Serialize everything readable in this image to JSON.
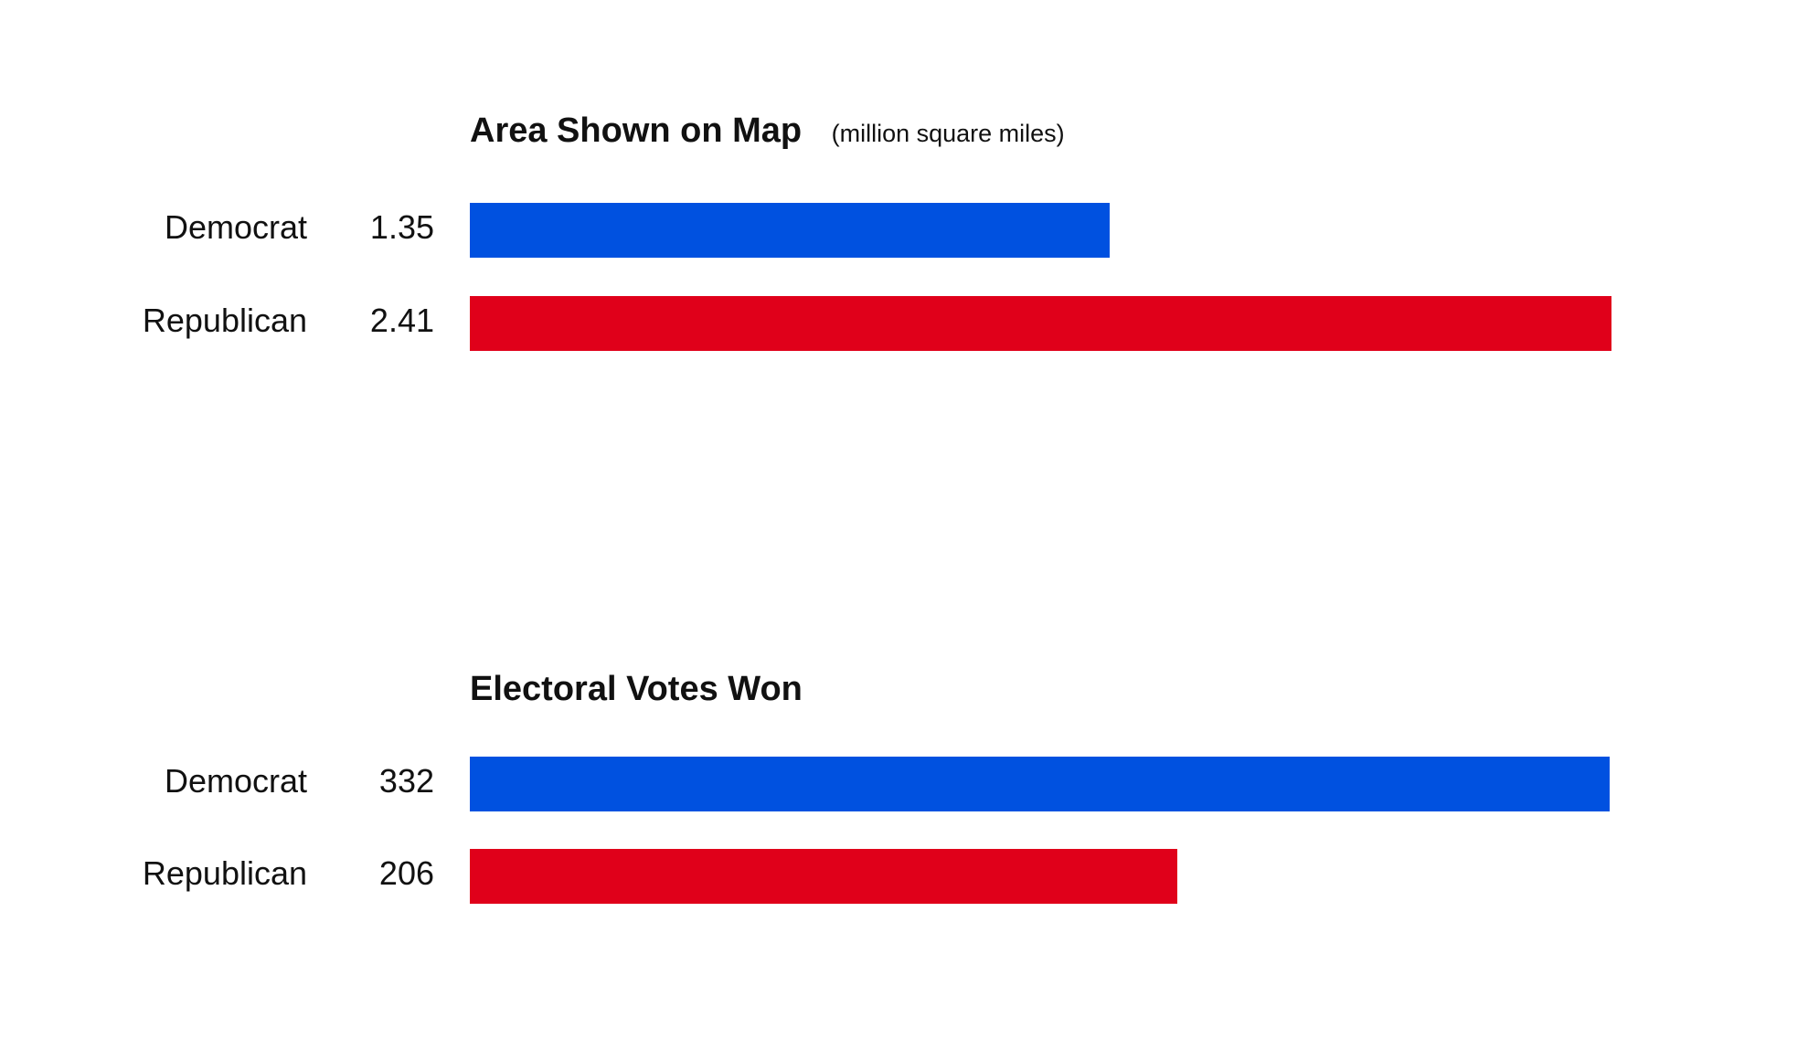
{
  "colors": {
    "democrat": "#0051e0",
    "republican": "#e0001a"
  },
  "chart_data": [
    {
      "type": "bar",
      "orientation": "horizontal",
      "title": "Area Shown on Map",
      "subtitle": "(million square miles)",
      "categories": [
        "Democrat",
        "Republican"
      ],
      "values": [
        1.35,
        2.41
      ],
      "value_labels": [
        "1.35",
        "2.41"
      ],
      "xlim": [
        0,
        2.45
      ],
      "grid": false
    },
    {
      "type": "bar",
      "orientation": "horizontal",
      "title": "Electoral Votes Won",
      "subtitle": "",
      "categories": [
        "Democrat",
        "Republican"
      ],
      "values": [
        332,
        206
      ],
      "value_labels": [
        "332",
        "206"
      ],
      "xlim": [
        0,
        338
      ],
      "grid": false
    }
  ]
}
